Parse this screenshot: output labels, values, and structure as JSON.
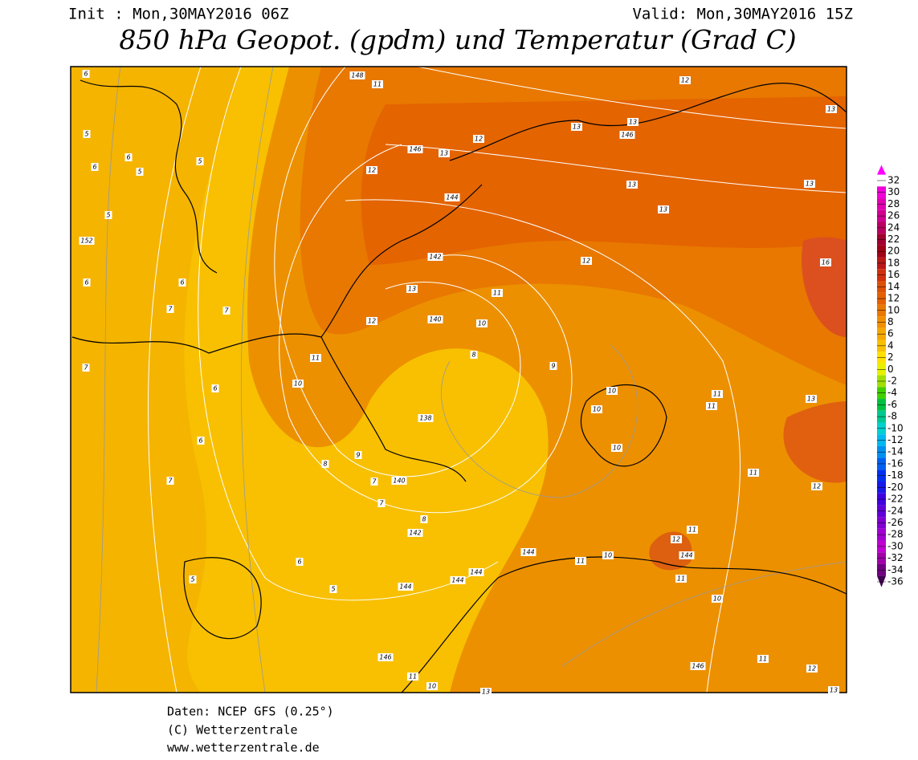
{
  "header": {
    "init": "Init : Mon,30MAY2016 06Z",
    "valid": "Valid: Mon,30MAY2016 15Z",
    "title": "850 hPa Geopot. (gpdm) und Temperatur (Grad C)"
  },
  "footer": [
    "Daten: NCEP GFS (0.25°)",
    "(C) Wetterzentrale",
    "www.wetterzentrale.de"
  ],
  "colorbar": {
    "levels": [
      "32",
      "30",
      "28",
      "26",
      "24",
      "22",
      "20",
      "18",
      "16",
      "14",
      "12",
      "10",
      "8",
      "6",
      "4",
      "2",
      "0",
      "-2",
      "-4",
      "-6",
      "-8",
      "-10",
      "-12",
      "-14",
      "-16",
      "-18",
      "-20",
      "-22",
      "-24",
      "-26",
      "-28",
      "-30",
      "-32",
      "-34",
      "-36"
    ],
    "colors": [
      "#ff00ff",
      "#f000d8",
      "#e000b0",
      "#d00090",
      "#b80060",
      "#a00030",
      "#a00018",
      "#b81818",
      "#d03010",
      "#dc5008",
      "#e46000",
      "#e87800",
      "#f09000",
      "#f4a800",
      "#f8c000",
      "#ffe000",
      "#e8f000",
      "#a0e000",
      "#40d000",
      "#00c040",
      "#00c890",
      "#00d0d0",
      "#00b8f0",
      "#0090f0",
      "#0060f0",
      "#0030f0",
      "#1818e8",
      "#4000e0",
      "#6000d8",
      "#8000d0",
      "#a000d0",
      "#c000d0",
      "#a000a8",
      "#700080",
      "#400050"
    ]
  },
  "map_labels": [
    "148",
    "11",
    "12",
    "13",
    "13",
    "13",
    "146",
    "12",
    "146",
    "13",
    "12",
    "13",
    "13",
    "13",
    "144",
    "152",
    "142",
    "12",
    "16",
    "13",
    "11",
    "12",
    "140",
    "10",
    "11",
    "8",
    "9",
    "10",
    "10",
    "11",
    "11",
    "13",
    "10",
    "138",
    "10",
    "9",
    "8",
    "7",
    "140",
    "11",
    "12",
    "7",
    "8",
    "142",
    "12",
    "11",
    "144",
    "144",
    "10",
    "11",
    "144",
    "144",
    "144",
    "5",
    "6",
    "5",
    "11",
    "10",
    "7",
    "6",
    "6",
    "7",
    "7",
    "6",
    "6",
    "6",
    "5",
    "6",
    "6",
    "5",
    "5",
    "5",
    "7",
    "11",
    "12",
    "146",
    "13",
    "13",
    "10",
    "11",
    "146"
  ]
}
